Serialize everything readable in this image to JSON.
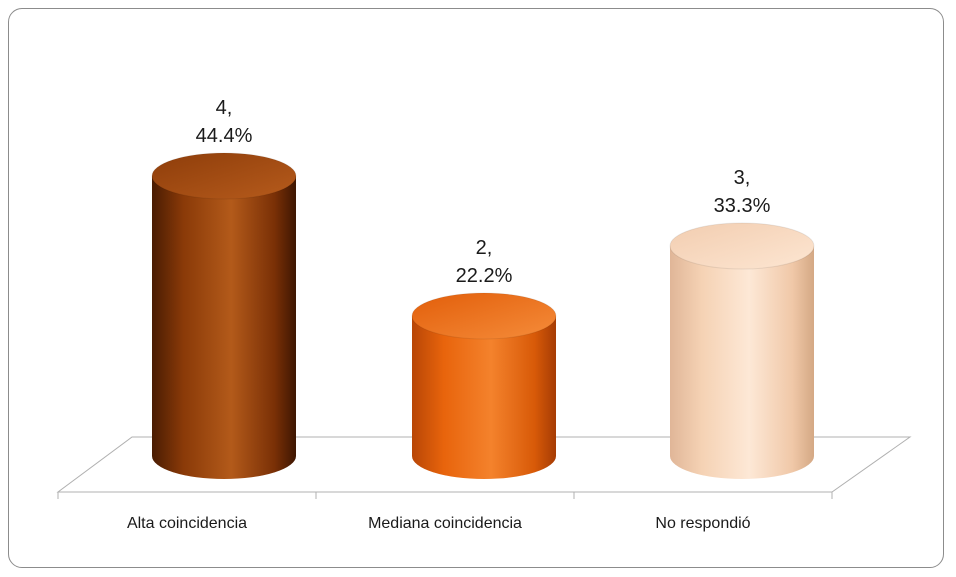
{
  "chart_data": {
    "type": "bar",
    "style": "3d-cylinder",
    "categories": [
      "Alta coincidencia",
      "Mediana coincidencia",
      "No respondió"
    ],
    "values": [
      4,
      2,
      3
    ],
    "percentages": [
      "44.4%",
      "22.2%",
      "33.3%"
    ],
    "data_labels": [
      {
        "value": "4,",
        "percent": "44.4%"
      },
      {
        "value": "2,",
        "percent": "22.2%"
      },
      {
        "value": "3,",
        "percent": "33.3%"
      }
    ],
    "colors": [
      "#8a3a08",
      "#e8640c",
      "#f5d2b4"
    ],
    "ylim": [
      0,
      4.5
    ],
    "grid": false,
    "legend": "none"
  }
}
